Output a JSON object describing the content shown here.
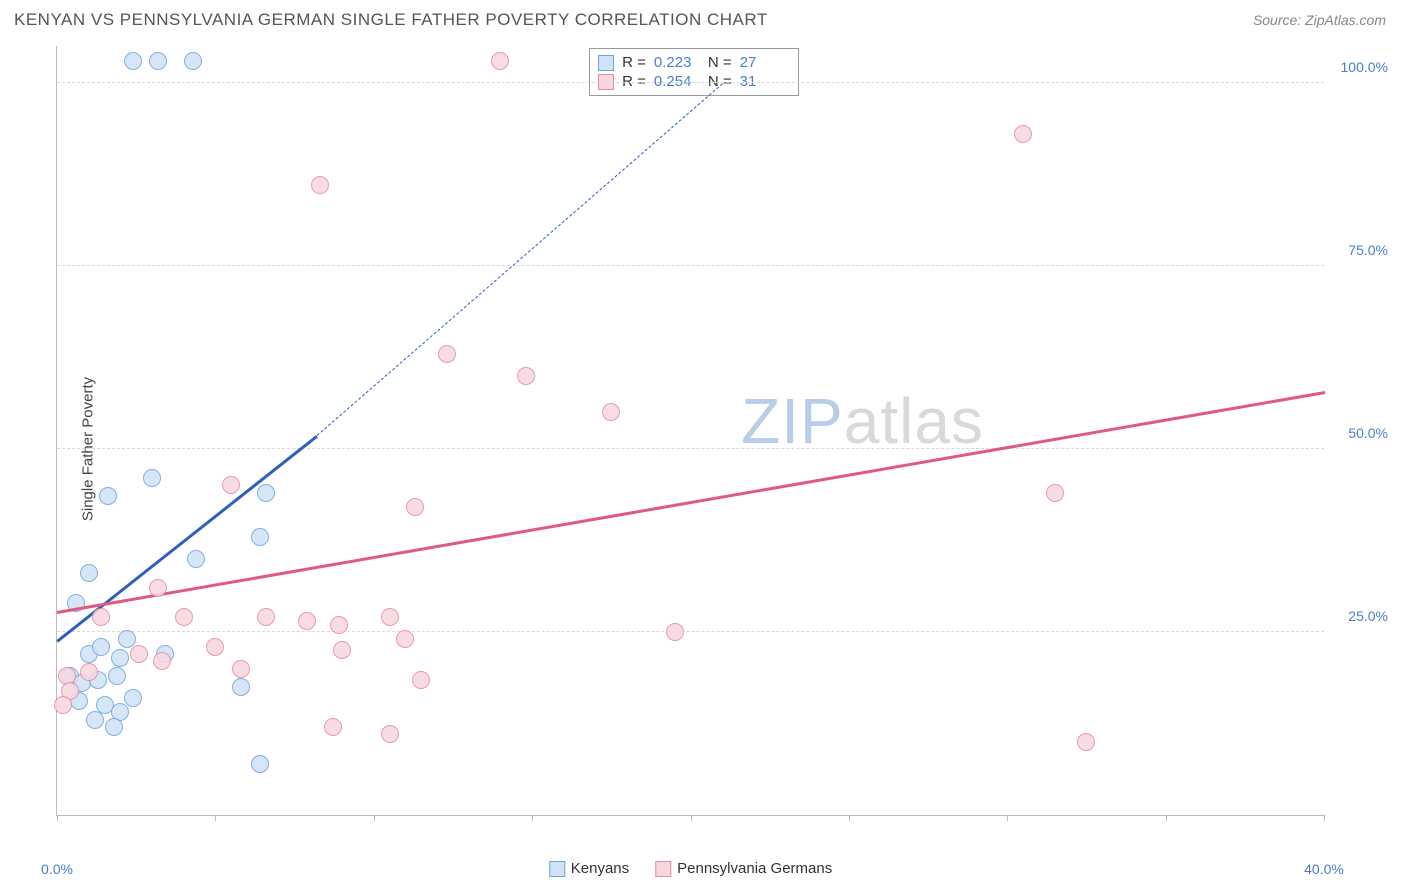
{
  "title": "KENYAN VS PENNSYLVANIA GERMAN SINGLE FATHER POVERTY CORRELATION CHART",
  "source": "Source: ZipAtlas.com",
  "ylabel": "Single Father Poverty",
  "watermark": {
    "zip": "ZIP",
    "atlas": "atlas",
    "zip_color": "#b9cce8",
    "atlas_color": "#d9d9d9"
  },
  "chart": {
    "type": "scatter",
    "xlim": [
      0,
      40
    ],
    "ylim": [
      0,
      105
    ],
    "xticks": [
      0,
      5,
      10,
      15,
      20,
      25,
      30,
      35,
      40
    ],
    "xticklabels": {
      "0": "0.0%",
      "40": "40.0%"
    },
    "yticks": [
      25,
      50,
      75,
      100
    ],
    "yticklabels": {
      "25": "25.0%",
      "50": "50.0%",
      "75": "75.0%",
      "100": "100.0%"
    },
    "ytick_color": "#4a7ecc",
    "grid_color": "#d8d8d8",
    "background_color": "#ffffff",
    "axis_color": "#bbbbbb",
    "marker_size": 18,
    "series": [
      {
        "name": "Kenyans",
        "fill": "#cfe2f6",
        "stroke": "#6fa3dd",
        "line_color": "#2d5fbb",
        "regression": {
          "x1": 0,
          "y1": 24,
          "x2": 8.2,
          "y2": 52,
          "dashed_to_x": 21,
          "dashed_to_y": 100
        },
        "stats": {
          "R": "0.223",
          "N": "27"
        },
        "points": [
          [
            2.4,
            103
          ],
          [
            3.2,
            103
          ],
          [
            4.3,
            103
          ],
          [
            3.0,
            46
          ],
          [
            1.6,
            43.5
          ],
          [
            6.6,
            44
          ],
          [
            6.4,
            38
          ],
          [
            4.4,
            35
          ],
          [
            1.0,
            33
          ],
          [
            0.6,
            29
          ],
          [
            1.0,
            22
          ],
          [
            1.4,
            23
          ],
          [
            2.0,
            21.5
          ],
          [
            0.4,
            19
          ],
          [
            0.8,
            18
          ],
          [
            1.3,
            18.5
          ],
          [
            1.9,
            19
          ],
          [
            0.7,
            15.5
          ],
          [
            1.5,
            15
          ],
          [
            2.4,
            16
          ],
          [
            1.2,
            13
          ],
          [
            2.0,
            14
          ],
          [
            5.8,
            17.5
          ],
          [
            1.8,
            12
          ],
          [
            2.2,
            24
          ],
          [
            3.4,
            22
          ],
          [
            6.4,
            7
          ]
        ]
      },
      {
        "name": "Pennsylvania Germans",
        "fill": "#f7d7df",
        "stroke": "#e38ba1",
        "line_color": "#e05a80",
        "regression": {
          "x1": 0,
          "y1": 28,
          "x2": 40,
          "y2": 58
        },
        "stats": {
          "R": "0.254",
          "N": "31"
        },
        "points": [
          [
            14,
            103
          ],
          [
            30.5,
            93
          ],
          [
            8.3,
            86
          ],
          [
            12.3,
            63
          ],
          [
            14.8,
            60
          ],
          [
            17.5,
            55
          ],
          [
            31.5,
            44
          ],
          [
            5.5,
            45
          ],
          [
            11.3,
            42
          ],
          [
            3.2,
            31
          ],
          [
            1.4,
            27
          ],
          [
            4.0,
            27
          ],
          [
            6.6,
            27
          ],
          [
            7.9,
            26.5
          ],
          [
            8.9,
            26
          ],
          [
            10.5,
            27
          ],
          [
            11.0,
            24
          ],
          [
            19.5,
            25
          ],
          [
            5.0,
            23
          ],
          [
            9.0,
            22.5
          ],
          [
            5.8,
            20
          ],
          [
            0.3,
            19
          ],
          [
            0.4,
            17
          ],
          [
            1.0,
            19.5
          ],
          [
            2.6,
            22
          ],
          [
            3.3,
            21
          ],
          [
            11.5,
            18.5
          ],
          [
            8.7,
            12
          ],
          [
            10.5,
            11
          ],
          [
            32.5,
            10
          ],
          [
            0.2,
            15
          ]
        ]
      }
    ],
    "bottom_legend": [
      {
        "label": "Kenyans",
        "fill": "#cfe2f6",
        "stroke": "#6fa3dd"
      },
      {
        "label": "Pennsylvania Germans",
        "fill": "#f7d7df",
        "stroke": "#e38ba1"
      }
    ]
  }
}
